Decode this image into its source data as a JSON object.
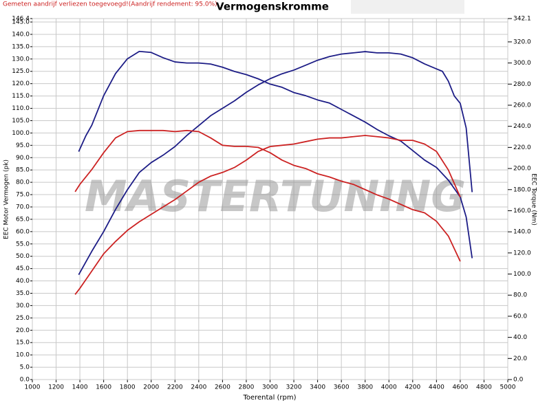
{
  "chart_data": {
    "type": "line",
    "title": "Vermogenskromme",
    "note": "Gemeten aandrijf verliezen toegevoegd!(Aandrijf rendement: 95.0%)",
    "watermark": "MASTERTUNING",
    "x_label": "Toerental (rpm)",
    "y_label": "EEC Motor Vermogen (pk)",
    "y2_label": "EEC Torque (Nm)",
    "grid": true,
    "xlim": [
      1000,
      5000
    ],
    "xticks": [
      1000,
      1200,
      1400,
      1600,
      1800,
      2000,
      2200,
      2400,
      2600,
      2800,
      3000,
      3200,
      3400,
      3600,
      3800,
      4000,
      4200,
      4400,
      4600,
      4800,
      5000
    ],
    "ylim": [
      0,
      146.4
    ],
    "yticks": [
      {
        "value": 0,
        "label": "0.0"
      },
      {
        "value": 5,
        "label": "5.0"
      },
      {
        "value": 10,
        "label": "10.0"
      },
      {
        "value": 15,
        "label": "15.0"
      },
      {
        "value": 20,
        "label": "20.0"
      },
      {
        "value": 25,
        "label": "25.0"
      },
      {
        "value": 30,
        "label": "30.0"
      },
      {
        "value": 35,
        "label": "35.0"
      },
      {
        "value": 40,
        "label": "40.0"
      },
      {
        "value": 45,
        "label": "45.0"
      },
      {
        "value": 50,
        "label": "50.0"
      },
      {
        "value": 55,
        "label": "55.0"
      },
      {
        "value": 60,
        "label": "60.0"
      },
      {
        "value": 65,
        "label": "65.0"
      },
      {
        "value": 70,
        "label": "70.0"
      },
      {
        "value": 75,
        "label": "75.0"
      },
      {
        "value": 80,
        "label": "80.0"
      },
      {
        "value": 85,
        "label": "85.0"
      },
      {
        "value": 90,
        "label": "90.0"
      },
      {
        "value": 95,
        "label": "95.0"
      },
      {
        "value": 100,
        "label": "100.0"
      },
      {
        "value": 105,
        "label": "105.0"
      },
      {
        "value": 110,
        "label": "110.0"
      },
      {
        "value": 115,
        "label": "115.0"
      },
      {
        "value": 120,
        "label": "120.0"
      },
      {
        "value": 125,
        "label": "125.0"
      },
      {
        "value": 130,
        "label": "130.0"
      },
      {
        "value": 135,
        "label": "135.0"
      },
      {
        "value": 140,
        "label": "140.0"
      },
      {
        "value": 145,
        "label": "145.0"
      },
      {
        "value": 146.4,
        "label": "146.4"
      }
    ],
    "y2lim": [
      0,
      342.1
    ],
    "y2ticks": [
      {
        "value": 0,
        "label": "0.0"
      },
      {
        "value": 20,
        "label": "20.0"
      },
      {
        "value": 40,
        "label": "40.0"
      },
      {
        "value": 60,
        "label": "60.0"
      },
      {
        "value": 80,
        "label": "80.0"
      },
      {
        "value": 100,
        "label": "100.0"
      },
      {
        "value": 120,
        "label": "120.0"
      },
      {
        "value": 140,
        "label": "140.0"
      },
      {
        "value": 160,
        "label": "160.0"
      },
      {
        "value": 180,
        "label": "180.0"
      },
      {
        "value": 200,
        "label": "200.0"
      },
      {
        "value": 220,
        "label": "220.0"
      },
      {
        "value": 240,
        "label": "240.0"
      },
      {
        "value": 260,
        "label": "260.0"
      },
      {
        "value": 280,
        "label": "280.0"
      },
      {
        "value": 300,
        "label": "300.0"
      },
      {
        "value": 320,
        "label": "320.0"
      },
      {
        "value": 342.1,
        "label": "342.1"
      }
    ],
    "series": [
      {
        "color": "#1c1c86",
        "x": [
          1390,
          1500,
          1600,
          1700,
          1800,
          1900,
          2000,
          2100,
          2200,
          2300,
          2400,
          2500,
          2600,
          2700,
          2800,
          2900,
          3000,
          3100,
          3200,
          3300,
          3400,
          3500,
          3600,
          3700,
          3800,
          3900,
          4000,
          4100,
          4200,
          4300,
          4400,
          4450,
          4500,
          4550,
          4600,
          4650,
          4700
        ],
        "values": [
          42.5,
          52,
          60,
          69,
          77,
          84,
          88,
          91,
          94.5,
          99,
          103,
          107,
          110,
          113,
          116.5,
          119.5,
          122,
          124,
          125.5,
          127.5,
          129.5,
          131,
          132,
          132.5,
          133,
          132.5,
          132.5,
          132,
          130.5,
          128,
          126,
          125,
          121,
          115,
          112,
          102,
          76
        ]
      },
      {
        "color": "#1c1c86",
        "axis": "y2",
        "x": [
          1390,
          1450,
          1500,
          1600,
          1700,
          1800,
          1900,
          2000,
          2100,
          2200,
          2300,
          2400,
          2500,
          2600,
          2700,
          2800,
          2900,
          3000,
          3100,
          3200,
          3300,
          3400,
          3500,
          3600,
          3700,
          3800,
          3900,
          4000,
          4100,
          4200,
          4300,
          4400,
          4500,
          4600,
          4650,
          4700
        ],
        "values": [
          216,
          231,
          241,
          269,
          290,
          304,
          311,
          310,
          305,
          301,
          300,
          300,
          299,
          296,
          292,
          289,
          285,
          280,
          277,
          272,
          269,
          265,
          262,
          256,
          250,
          244,
          237,
          231,
          226,
          217,
          208,
          201,
          189,
          173,
          154,
          115
        ]
      },
      {
        "color": "#cc2222",
        "x": [
          1360,
          1400,
          1500,
          1600,
          1700,
          1800,
          1900,
          2000,
          2100,
          2200,
          2300,
          2400,
          2500,
          2600,
          2700,
          2800,
          2900,
          3000,
          3100,
          3200,
          3300,
          3400,
          3500,
          3600,
          3700,
          3800,
          3900,
          4000,
          4100,
          4200,
          4300,
          4400,
          4500,
          4600
        ],
        "values": [
          34.5,
          37,
          44,
          51,
          56,
          60.5,
          64,
          67,
          70,
          73,
          76.5,
          80,
          82.5,
          84,
          86,
          89,
          92.5,
          94.5,
          95,
          95.5,
          96.5,
          97.5,
          98,
          98,
          98.5,
          99,
          98.5,
          98,
          97,
          97,
          95.5,
          92.5,
          85,
          74
        ]
      },
      {
        "color": "#cc2222",
        "axis": "y2",
        "x": [
          1360,
          1400,
          1500,
          1600,
          1700,
          1800,
          1900,
          2000,
          2100,
          2200,
          2300,
          2400,
          2500,
          2600,
          2700,
          2800,
          2900,
          3000,
          3100,
          3200,
          3300,
          3400,
          3500,
          3600,
          3700,
          3800,
          3900,
          4000,
          4100,
          4200,
          4300,
          4400,
          4500,
          4600
        ],
        "values": [
          178,
          185,
          199,
          215,
          229,
          235,
          236,
          236,
          236,
          235,
          236,
          235,
          229,
          222,
          221,
          221,
          220,
          215,
          208,
          203,
          200,
          195,
          192,
          188,
          185,
          180,
          175,
          171,
          166,
          161,
          158,
          150,
          136,
          112
        ]
      }
    ]
  }
}
